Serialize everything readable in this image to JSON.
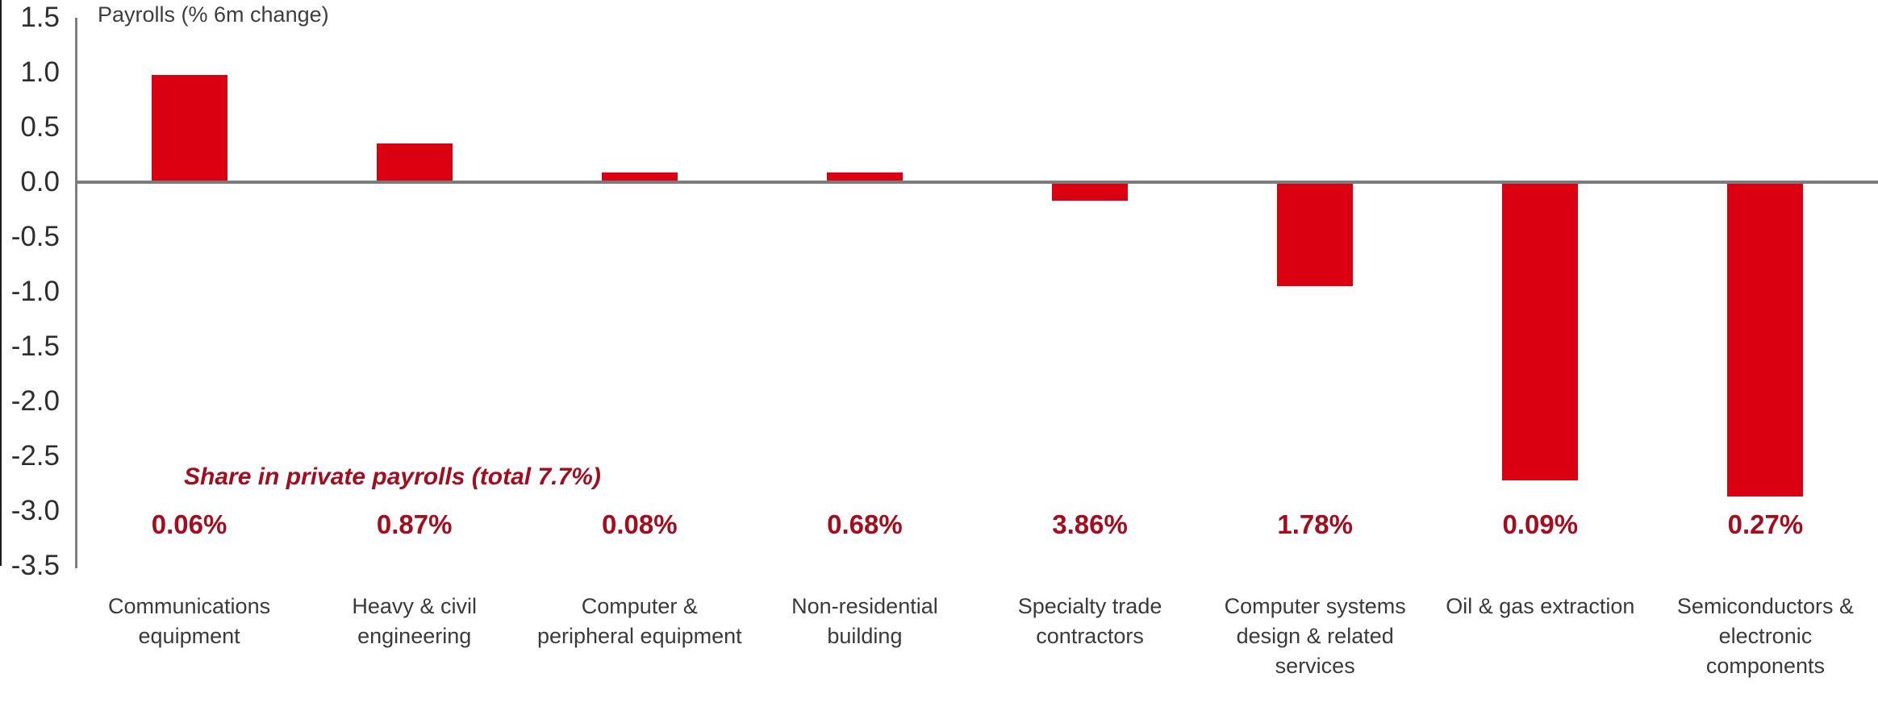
{
  "chart_data": {
    "type": "bar",
    "title": "Payrolls (% 6m change)",
    "annotation": "Share in private payrolls (total 7.7%)",
    "categories": [
      "Communications equipment",
      "Heavy & civil engineering",
      "Computer & peripheral equipment",
      "Non-residential building",
      "Specialty trade contractors",
      "Computer systems design & related services",
      "Oil & gas extraction",
      "Semiconductors & electronic components"
    ],
    "category_lines": [
      [
        "Communications",
        "equipment"
      ],
      [
        "Heavy & civil",
        "engineering"
      ],
      [
        "Computer &",
        "peripheral equipment"
      ],
      [
        "Non-residential",
        "building"
      ],
      [
        "Specialty trade",
        "contractors"
      ],
      [
        "Computer systems",
        "design & related",
        "services"
      ],
      [
        "Oil & gas extraction"
      ],
      [
        "Semiconductors &",
        "electronic",
        "components"
      ]
    ],
    "values": [
      0.98,
      0.35,
      0.09,
      0.09,
      -0.17,
      -0.95,
      -2.72,
      -2.87
    ],
    "share_labels": [
      "0.06%",
      "0.87%",
      "0.08%",
      "0.68%",
      "3.86%",
      "1.78%",
      "0.09%",
      "0.27%"
    ],
    "ylim": [
      -3.5,
      1.5
    ],
    "ytick_labels": [
      "1.5",
      "1.0",
      "0.5",
      "0.0",
      "-0.5",
      "-1.0",
      "-1.5",
      "-2.0",
      "-2.5",
      "-3.0",
      "-3.5"
    ],
    "ytick_values": [
      1.5,
      1.0,
      0.5,
      0.0,
      -0.5,
      -1.0,
      -1.5,
      -2.0,
      -2.5,
      -3.0,
      -3.5
    ],
    "grid": false,
    "legend": "none",
    "xlabel": "",
    "ylabel": "",
    "bar_color": "#db0011",
    "accent_text_color": "#a50d1e",
    "axis_color": "#7f7f7f",
    "text_color": "#3a3a3a"
  }
}
